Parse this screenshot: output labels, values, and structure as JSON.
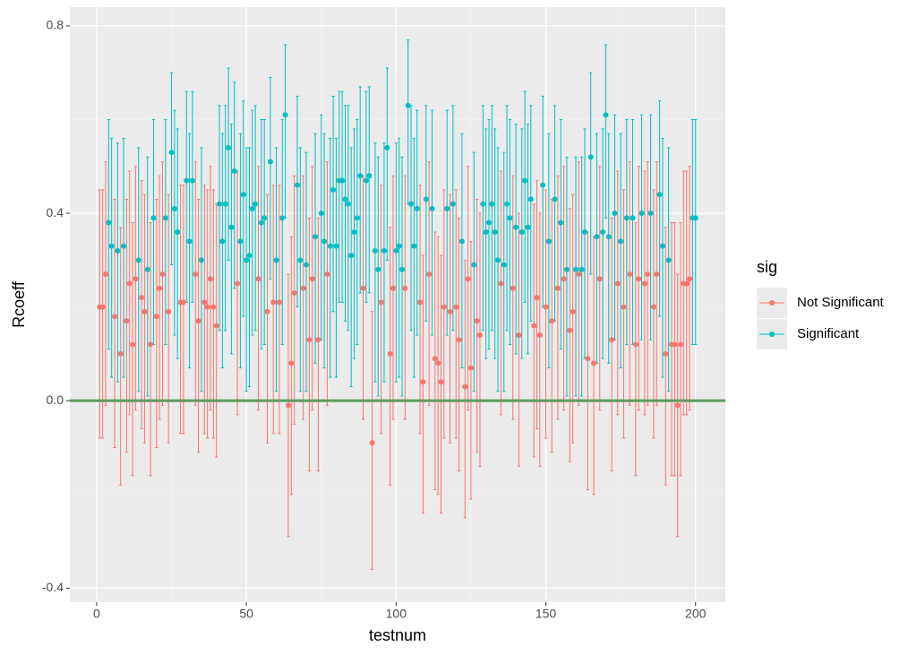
{
  "chart_data": {
    "type": "errorbar-scatter",
    "x_label": "testnum",
    "y_label": "Rcoeff",
    "legend_title": "sig",
    "legend_position": "right",
    "xlim": [
      -8.95,
      209.95
    ],
    "xticks": [
      0,
      50,
      100,
      150,
      200
    ],
    "minor_xticks": [
      25,
      75,
      125,
      175
    ],
    "ylim": [
      -0.43,
      0.84
    ],
    "yticks": [
      {
        "value": -0.4,
        "label": "-0.4"
      },
      {
        "value": 0,
        "label": "0.0"
      },
      {
        "value": 0.4,
        "label": "0.4"
      },
      {
        "value": 0.8,
        "label": "0.8"
      }
    ],
    "minor_yticks": [
      -0.2,
      0.2,
      0.6
    ],
    "grid": true,
    "reference_line": {
      "value": 0,
      "color": "#5e9a5e"
    },
    "series": [
      {
        "name": "Not Significant",
        "color": "#F8766D",
        "x": [
          1,
          2,
          3,
          6,
          8,
          10,
          11,
          12,
          13,
          15,
          16,
          18,
          20,
          21,
          22,
          24,
          28,
          29,
          33,
          34,
          36,
          37,
          38,
          39,
          40,
          47,
          54,
          57,
          59,
          61,
          64,
          65,
          66,
          69,
          71,
          72,
          74,
          77,
          89,
          92,
          95,
          98,
          99,
          103,
          108,
          109,
          111,
          113,
          114,
          115,
          116,
          118,
          120,
          121,
          123,
          124,
          125,
          127,
          128,
          135,
          139,
          141,
          146,
          147,
          148,
          150,
          152,
          154,
          156,
          158,
          159,
          161,
          164,
          166,
          168,
          172,
          174,
          176,
          178,
          180,
          181,
          183,
          184,
          186,
          187,
          190,
          192,
          193,
          194,
          195,
          196,
          197,
          198
        ],
        "values": [
          0.2,
          0.2,
          0.27,
          0.18,
          0.1,
          0.17,
          0.25,
          0.12,
          0.26,
          0.22,
          0.19,
          0.12,
          0.18,
          0.24,
          0.27,
          0.19,
          0.21,
          0.21,
          0.27,
          0.17,
          0.21,
          0.2,
          0.26,
          0.2,
          0.16,
          0.25,
          0.26,
          0.19,
          0.21,
          0.21,
          -0.01,
          0.08,
          0.23,
          0.24,
          0.13,
          0.26,
          0.13,
          0.27,
          0.24,
          -0.09,
          0.21,
          0.1,
          0.24,
          0.24,
          0.21,
          0.04,
          0.27,
          0.09,
          0.08,
          0.04,
          0.2,
          0.19,
          0.2,
          0.13,
          0.03,
          0.26,
          0.07,
          0.17,
          0.14,
          0.25,
          0.24,
          0.14,
          0.16,
          0.22,
          0.14,
          0.2,
          0.17,
          0.24,
          0.26,
          0.15,
          0.19,
          0.27,
          0.09,
          0.08,
          0.26,
          0.13,
          0.25,
          0.2,
          0.27,
          0.12,
          0.26,
          0.25,
          0.27,
          0.2,
          0.27,
          0.1,
          0.12,
          0.12,
          -0.01,
          0.12,
          0.25,
          0.25,
          0.26
        ],
        "lower": [
          -0.08,
          -0.08,
          -0.01,
          -0.1,
          -0.18,
          -0.11,
          -0.03,
          -0.16,
          -0.02,
          -0.06,
          -0.09,
          -0.16,
          -0.1,
          -0.04,
          -0.01,
          -0.09,
          -0.07,
          -0.07,
          -0.01,
          -0.11,
          -0.07,
          -0.08,
          -0.02,
          -0.08,
          -0.12,
          -0.03,
          -0.02,
          -0.09,
          -0.07,
          -0.07,
          -0.29,
          -0.2,
          -0.05,
          -0.04,
          -0.15,
          -0.02,
          -0.15,
          -0.01,
          -0.04,
          -0.36,
          -0.07,
          -0.18,
          -0.04,
          -0.04,
          -0.07,
          -0.24,
          -0.01,
          -0.19,
          -0.2,
          -0.24,
          -0.08,
          -0.09,
          -0.08,
          -0.15,
          -0.25,
          -0.02,
          -0.21,
          -0.11,
          -0.14,
          -0.03,
          -0.04,
          -0.14,
          -0.12,
          -0.06,
          -0.14,
          -0.08,
          -0.11,
          -0.04,
          -0.02,
          -0.13,
          -0.09,
          -0.01,
          -0.19,
          -0.2,
          -0.02,
          -0.15,
          -0.03,
          -0.08,
          -0.01,
          -0.16,
          -0.02,
          -0.03,
          -0.01,
          -0.08,
          -0.01,
          -0.18,
          -0.16,
          -0.16,
          -0.29,
          -0.16,
          -0.03,
          -0.03,
          -0.02
        ],
        "upper": [
          0.45,
          0.45,
          0.51,
          0.43,
          0.37,
          0.43,
          0.49,
          0.38,
          0.5,
          0.47,
          0.44,
          0.38,
          0.43,
          0.48,
          0.51,
          0.44,
          0.46,
          0.46,
          0.51,
          0.43,
          0.46,
          0.45,
          0.5,
          0.45,
          0.42,
          0.49,
          0.5,
          0.44,
          0.46,
          0.46,
          0.27,
          0.35,
          0.48,
          0.48,
          0.39,
          0.5,
          0.39,
          0.51,
          0.48,
          0.19,
          0.46,
          0.37,
          0.48,
          0.48,
          0.46,
          0.31,
          0.51,
          0.36,
          0.35,
          0.31,
          0.45,
          0.44,
          0.45,
          0.39,
          0.3,
          0.5,
          0.34,
          0.43,
          0.4,
          0.49,
          0.48,
          0.4,
          0.42,
          0.47,
          0.4,
          0.45,
          0.43,
          0.48,
          0.5,
          0.41,
          0.44,
          0.51,
          0.36,
          0.35,
          0.5,
          0.39,
          0.49,
          0.45,
          0.51,
          0.38,
          0.5,
          0.49,
          0.51,
          0.45,
          0.51,
          0.37,
          0.38,
          0.38,
          0.27,
          0.38,
          0.49,
          0.49,
          0.5
        ]
      },
      {
        "name": "Significant",
        "color": "#00BFC4",
        "x": [
          4,
          5,
          7,
          9,
          14,
          17,
          19,
          23,
          25,
          26,
          27,
          30,
          31,
          32,
          35,
          41,
          42,
          43,
          44,
          45,
          46,
          48,
          49,
          50,
          51,
          52,
          53,
          55,
          56,
          58,
          60,
          62,
          63,
          67,
          68,
          70,
          73,
          75,
          76,
          78,
          79,
          80,
          81,
          82,
          83,
          84,
          85,
          86,
          87,
          88,
          90,
          91,
          93,
          94,
          96,
          97,
          100,
          101,
          102,
          104,
          105,
          106,
          107,
          110,
          112,
          117,
          119,
          122,
          126,
          129,
          130,
          131,
          132,
          133,
          134,
          136,
          137,
          138,
          140,
          142,
          143,
          144,
          145,
          149,
          151,
          153,
          155,
          157,
          160,
          162,
          163,
          165,
          167,
          169,
          170,
          171,
          173,
          175,
          177,
          179,
          182,
          185,
          188,
          189,
          191,
          199,
          200
        ],
        "values": [
          0.38,
          0.33,
          0.32,
          0.33,
          0.3,
          0.28,
          0.39,
          0.39,
          0.53,
          0.41,
          0.36,
          0.47,
          0.34,
          0.47,
          0.3,
          0.42,
          0.34,
          0.42,
          0.54,
          0.37,
          0.49,
          0.34,
          0.44,
          0.3,
          0.31,
          0.41,
          0.42,
          0.38,
          0.39,
          0.51,
          0.3,
          0.39,
          0.61,
          0.46,
          0.3,
          0.29,
          0.35,
          0.4,
          0.34,
          0.33,
          0.45,
          0.33,
          0.47,
          0.47,
          0.43,
          0.42,
          0.31,
          0.36,
          0.39,
          0.48,
          0.47,
          0.48,
          0.32,
          0.28,
          0.32,
          0.54,
          0.32,
          0.33,
          0.28,
          0.63,
          0.42,
          0.33,
          0.41,
          0.43,
          0.41,
          0.41,
          0.42,
          0.34,
          0.29,
          0.42,
          0.36,
          0.38,
          0.42,
          0.36,
          0.3,
          0.29,
          0.42,
          0.39,
          0.37,
          0.36,
          0.47,
          0.37,
          0.43,
          0.46,
          0.34,
          0.43,
          0.38,
          0.28,
          0.28,
          0.28,
          0.36,
          0.52,
          0.35,
          0.36,
          0.61,
          0.35,
          0.4,
          0.34,
          0.39,
          0.39,
          0.4,
          0.4,
          0.44,
          0.33,
          0.3,
          0.39,
          0.39
        ],
        "lower": [
          0.11,
          0.05,
          0.04,
          0.05,
          0.02,
          0.01,
          0.12,
          0.12,
          0.29,
          0.14,
          0.09,
          0.21,
          0.07,
          0.21,
          0.02,
          0.15,
          0.07,
          0.15,
          0.3,
          0.1,
          0.24,
          0.07,
          0.18,
          0.02,
          0.03,
          0.14,
          0.15,
          0.11,
          0.12,
          0.26,
          0.02,
          0.12,
          0.39,
          0.2,
          0.02,
          0.02,
          0.08,
          0.13,
          0.07,
          0.05,
          0.19,
          0.05,
          0.21,
          0.21,
          0.17,
          0.15,
          0.03,
          0.09,
          0.12,
          0.23,
          0.21,
          0.23,
          0.04,
          0.01,
          0.04,
          0.3,
          0.04,
          0.05,
          0.01,
          0.42,
          0.15,
          0.05,
          0.14,
          0.17,
          0.14,
          0.14,
          0.15,
          0.07,
          0.02,
          0.15,
          0.09,
          0.11,
          0.15,
          0.09,
          0.02,
          0.02,
          0.15,
          0.12,
          0.1,
          0.09,
          0.21,
          0.1,
          0.17,
          0.2,
          0.07,
          0.17,
          0.11,
          0.01,
          0.01,
          0.01,
          0.09,
          0.27,
          0.08,
          0.09,
          0.39,
          0.08,
          0.13,
          0.07,
          0.12,
          0.12,
          0.13,
          0.13,
          0.18,
          0.05,
          0.02,
          0.12,
          0.12
        ],
        "upper": [
          0.6,
          0.56,
          0.55,
          0.56,
          0.54,
          0.52,
          0.6,
          0.6,
          0.7,
          0.62,
          0.58,
          0.66,
          0.57,
          0.66,
          0.54,
          0.63,
          0.57,
          0.63,
          0.71,
          0.59,
          0.68,
          0.57,
          0.64,
          0.54,
          0.54,
          0.62,
          0.63,
          0.6,
          0.6,
          0.69,
          0.54,
          0.6,
          0.76,
          0.65,
          0.54,
          0.53,
          0.57,
          0.61,
          0.57,
          0.56,
          0.65,
          0.56,
          0.66,
          0.66,
          0.63,
          0.63,
          0.54,
          0.58,
          0.6,
          0.67,
          0.66,
          0.67,
          0.55,
          0.52,
          0.55,
          0.71,
          0.55,
          0.56,
          0.52,
          0.77,
          0.63,
          0.56,
          0.62,
          0.63,
          0.62,
          0.62,
          0.63,
          0.57,
          0.53,
          0.63,
          0.58,
          0.6,
          0.63,
          0.58,
          0.54,
          0.53,
          0.63,
          0.6,
          0.59,
          0.58,
          0.66,
          0.59,
          0.63,
          0.65,
          0.57,
          0.63,
          0.6,
          0.52,
          0.52,
          0.52,
          0.58,
          0.7,
          0.57,
          0.58,
          0.76,
          0.57,
          0.61,
          0.57,
          0.6,
          0.6,
          0.61,
          0.61,
          0.64,
          0.56,
          0.54,
          0.6,
          0.6
        ]
      }
    ]
  }
}
